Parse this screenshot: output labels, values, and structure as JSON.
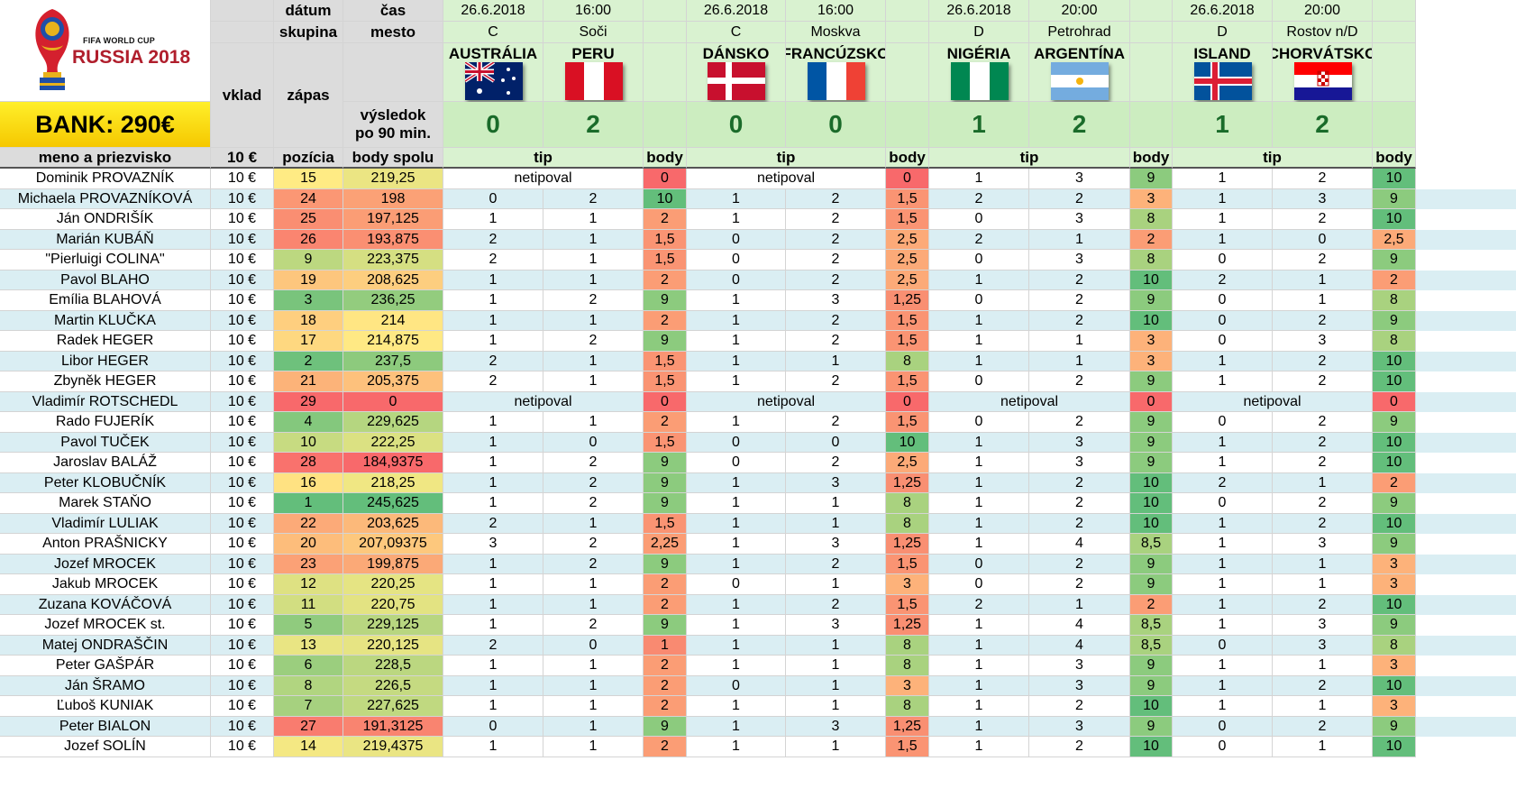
{
  "logo": {
    "line1": "FIFA WORLD CUP",
    "line2": "RUSSIA 2018"
  },
  "bank_label": "BANK: 290€",
  "header_labels": {
    "datum": "dátum",
    "skupina": "skupina",
    "cas": "čas",
    "mesto": "mesto",
    "vklad": "vklad",
    "zapas": "zápas",
    "vysledok": "výsledok",
    "po90": "po 90 min.",
    "meno": "meno a priezvisko",
    "vklad_amount": "10 €",
    "pozicia": "pozícia",
    "body_spolu": "body spolu",
    "tip": "tip",
    "body": "body"
  },
  "matches": [
    {
      "date": "26.6.2018",
      "time": "16:00",
      "group": "C",
      "city": "Soči",
      "home": "AUSTRÁLIA",
      "away": "PERU",
      "home_score": "0",
      "away_score": "2",
      "home_flag": "australia-flag",
      "away_flag": "peru-flag"
    },
    {
      "date": "26.6.2018",
      "time": "16:00",
      "group": "C",
      "city": "Moskva",
      "home": "DÁNSKO",
      "away": "FRANCÚZSKO",
      "home_score": "0",
      "away_score": "0",
      "home_flag": "denmark-flag",
      "away_flag": "france-flag"
    },
    {
      "date": "26.6.2018",
      "time": "20:00",
      "group": "D",
      "city": "Petrohrad",
      "home": "NIGÉRIA",
      "away": "ARGENTÍNA",
      "home_score": "1",
      "away_score": "2",
      "home_flag": "nigeria-flag",
      "away_flag": "argentina-flag"
    },
    {
      "date": "26.6.2018",
      "time": "20:00",
      "group": "D",
      "city": "Rostov n/D",
      "home": "ISLAND",
      "away": "CHORVÁTSKO",
      "home_score": "1",
      "away_score": "2",
      "home_flag": "iceland-flag",
      "away_flag": "croatia-flag"
    }
  ],
  "rows": [
    {
      "name": "Dominik PROVAZNÍK",
      "vklad": "10 €",
      "pos": "15",
      "total": "219,25",
      "m": [
        {
          "nt": "netipoval",
          "p": "0"
        },
        {
          "nt": "netipoval",
          "p": "0"
        },
        {
          "h": "1",
          "a": "3",
          "p": "9"
        },
        {
          "h": "1",
          "a": "2",
          "p": "10"
        }
      ]
    },
    {
      "name": "Michaela PROVAZNÍKOVÁ",
      "vklad": "10 €",
      "pos": "24",
      "total": "198",
      "m": [
        {
          "h": "0",
          "a": "2",
          "p": "10"
        },
        {
          "h": "1",
          "a": "2",
          "p": "1,5"
        },
        {
          "h": "2",
          "a": "2",
          "p": "3"
        },
        {
          "h": "1",
          "a": "3",
          "p": "9"
        }
      ]
    },
    {
      "name": "Ján ONDRIŠÍK",
      "vklad": "10 €",
      "pos": "25",
      "total": "197,125",
      "m": [
        {
          "h": "1",
          "a": "1",
          "p": "2"
        },
        {
          "h": "1",
          "a": "2",
          "p": "1,5"
        },
        {
          "h": "0",
          "a": "3",
          "p": "8"
        },
        {
          "h": "1",
          "a": "2",
          "p": "10"
        }
      ]
    },
    {
      "name": "Marián KUBÁŇ",
      "vklad": "10 €",
      "pos": "26",
      "total": "193,875",
      "m": [
        {
          "h": "2",
          "a": "1",
          "p": "1,5"
        },
        {
          "h": "0",
          "a": "2",
          "p": "2,5"
        },
        {
          "h": "2",
          "a": "1",
          "p": "2"
        },
        {
          "h": "1",
          "a": "0",
          "p": "2,5"
        }
      ]
    },
    {
      "name": "\"Pierluigi COLINA\"",
      "vklad": "10 €",
      "pos": "9",
      "total": "223,375",
      "m": [
        {
          "h": "2",
          "a": "1",
          "p": "1,5"
        },
        {
          "h": "0",
          "a": "2",
          "p": "2,5"
        },
        {
          "h": "0",
          "a": "3",
          "p": "8"
        },
        {
          "h": "0",
          "a": "2",
          "p": "9"
        }
      ]
    },
    {
      "name": "Pavol BLAHO",
      "vklad": "10 €",
      "pos": "19",
      "total": "208,625",
      "m": [
        {
          "h": "1",
          "a": "1",
          "p": "2"
        },
        {
          "h": "0",
          "a": "2",
          "p": "2,5"
        },
        {
          "h": "1",
          "a": "2",
          "p": "10"
        },
        {
          "h": "2",
          "a": "1",
          "p": "2"
        }
      ]
    },
    {
      "name": "Emília BLAHOVÁ",
      "vklad": "10 €",
      "pos": "3",
      "total": "236,25",
      "m": [
        {
          "h": "1",
          "a": "2",
          "p": "9"
        },
        {
          "h": "1",
          "a": "3",
          "p": "1,25"
        },
        {
          "h": "0",
          "a": "2",
          "p": "9"
        },
        {
          "h": "0",
          "a": "1",
          "p": "8"
        }
      ]
    },
    {
      "name": "Martin KLUČKA",
      "vklad": "10 €",
      "pos": "18",
      "total": "214",
      "m": [
        {
          "h": "1",
          "a": "1",
          "p": "2"
        },
        {
          "h": "1",
          "a": "2",
          "p": "1,5"
        },
        {
          "h": "1",
          "a": "2",
          "p": "10"
        },
        {
          "h": "0",
          "a": "2",
          "p": "9"
        }
      ]
    },
    {
      "name": "Radek HEGER",
      "vklad": "10 €",
      "pos": "17",
      "total": "214,875",
      "m": [
        {
          "h": "1",
          "a": "2",
          "p": "9"
        },
        {
          "h": "1",
          "a": "2",
          "p": "1,5"
        },
        {
          "h": "1",
          "a": "1",
          "p": "3"
        },
        {
          "h": "0",
          "a": "3",
          "p": "8"
        }
      ]
    },
    {
      "name": "Libor HEGER",
      "vklad": "10 €",
      "pos": "2",
      "total": "237,5",
      "m": [
        {
          "h": "2",
          "a": "1",
          "p": "1,5"
        },
        {
          "h": "1",
          "a": "1",
          "p": "8"
        },
        {
          "h": "1",
          "a": "1",
          "p": "3"
        },
        {
          "h": "1",
          "a": "2",
          "p": "10"
        }
      ]
    },
    {
      "name": "Zbyněk HEGER",
      "vklad": "10 €",
      "pos": "21",
      "total": "205,375",
      "m": [
        {
          "h": "2",
          "a": "1",
          "p": "1,5"
        },
        {
          "h": "1",
          "a": "2",
          "p": "1,5"
        },
        {
          "h": "0",
          "a": "2",
          "p": "9"
        },
        {
          "h": "1",
          "a": "2",
          "p": "10"
        }
      ]
    },
    {
      "name": "Vladimír ROTSCHEDL",
      "vklad": "10 €",
      "pos": "29",
      "total": "0",
      "m": [
        {
          "nt": "netipoval",
          "p": "0"
        },
        {
          "nt": "netipoval",
          "p": "0"
        },
        {
          "nt": "netipoval",
          "p": "0"
        },
        {
          "nt": "netipoval",
          "p": "0"
        }
      ]
    },
    {
      "name": "Rado FUJERÍK",
      "vklad": "10 €",
      "pos": "4",
      "total": "229,625",
      "m": [
        {
          "h": "1",
          "a": "1",
          "p": "2"
        },
        {
          "h": "1",
          "a": "2",
          "p": "1,5"
        },
        {
          "h": "0",
          "a": "2",
          "p": "9"
        },
        {
          "h": "0",
          "a": "2",
          "p": "9"
        }
      ]
    },
    {
      "name": "Pavol TUČEK",
      "vklad": "10 €",
      "pos": "10",
      "total": "222,25",
      "m": [
        {
          "h": "1",
          "a": "0",
          "p": "1,5"
        },
        {
          "h": "0",
          "a": "0",
          "p": "10"
        },
        {
          "h": "1",
          "a": "3",
          "p": "9"
        },
        {
          "h": "1",
          "a": "2",
          "p": "10"
        }
      ]
    },
    {
      "name": "Jaroslav BALÁŽ",
      "vklad": "10 €",
      "pos": "28",
      "total": "184,9375",
      "m": [
        {
          "h": "1",
          "a": "2",
          "p": "9"
        },
        {
          "h": "0",
          "a": "2",
          "p": "2,5"
        },
        {
          "h": "1",
          "a": "3",
          "p": "9"
        },
        {
          "h": "1",
          "a": "2",
          "p": "10"
        }
      ]
    },
    {
      "name": "Peter KLOBUČNÍK",
      "vklad": "10 €",
      "pos": "16",
      "total": "218,25",
      "m": [
        {
          "h": "1",
          "a": "2",
          "p": "9"
        },
        {
          "h": "1",
          "a": "3",
          "p": "1,25"
        },
        {
          "h": "1",
          "a": "2",
          "p": "10"
        },
        {
          "h": "2",
          "a": "1",
          "p": "2"
        }
      ]
    },
    {
      "name": "Marek STAŇO",
      "vklad": "10 €",
      "pos": "1",
      "total": "245,625",
      "m": [
        {
          "h": "1",
          "a": "2",
          "p": "9"
        },
        {
          "h": "1",
          "a": "1",
          "p": "8"
        },
        {
          "h": "1",
          "a": "2",
          "p": "10"
        },
        {
          "h": "0",
          "a": "2",
          "p": "9"
        }
      ]
    },
    {
      "name": "Vladimír LULIAK",
      "vklad": "10 €",
      "pos": "22",
      "total": "203,625",
      "m": [
        {
          "h": "2",
          "a": "1",
          "p": "1,5"
        },
        {
          "h": "1",
          "a": "1",
          "p": "8"
        },
        {
          "h": "1",
          "a": "2",
          "p": "10"
        },
        {
          "h": "1",
          "a": "2",
          "p": "10"
        }
      ]
    },
    {
      "name": "Anton PRAŠNICKY",
      "vklad": "10 €",
      "pos": "20",
      "total": "207,09375",
      "m": [
        {
          "h": "3",
          "a": "2",
          "p": "2,25"
        },
        {
          "h": "1",
          "a": "3",
          "p": "1,25"
        },
        {
          "h": "1",
          "a": "4",
          "p": "8,5"
        },
        {
          "h": "1",
          "a": "3",
          "p": "9"
        }
      ]
    },
    {
      "name": "Jozef MROCEK",
      "vklad": "10 €",
      "pos": "23",
      "total": "199,875",
      "m": [
        {
          "h": "1",
          "a": "2",
          "p": "9"
        },
        {
          "h": "1",
          "a": "2",
          "p": "1,5"
        },
        {
          "h": "0",
          "a": "2",
          "p": "9"
        },
        {
          "h": "1",
          "a": "1",
          "p": "3"
        }
      ]
    },
    {
      "name": "Jakub MROCEK",
      "vklad": "10 €",
      "pos": "12",
      "total": "220,25",
      "m": [
        {
          "h": "1",
          "a": "1",
          "p": "2"
        },
        {
          "h": "0",
          "a": "1",
          "p": "3"
        },
        {
          "h": "0",
          "a": "2",
          "p": "9"
        },
        {
          "h": "1",
          "a": "1",
          "p": "3"
        }
      ]
    },
    {
      "name": "Zuzana KOVÁČOVÁ",
      "vklad": "10 €",
      "pos": "11",
      "total": "220,75",
      "m": [
        {
          "h": "1",
          "a": "1",
          "p": "2"
        },
        {
          "h": "1",
          "a": "2",
          "p": "1,5"
        },
        {
          "h": "2",
          "a": "1",
          "p": "2"
        },
        {
          "h": "1",
          "a": "2",
          "p": "10"
        }
      ]
    },
    {
      "name": "Jozef MROCEK st.",
      "vklad": "10 €",
      "pos": "5",
      "total": "229,125",
      "m": [
        {
          "h": "1",
          "a": "2",
          "p": "9"
        },
        {
          "h": "1",
          "a": "3",
          "p": "1,25"
        },
        {
          "h": "1",
          "a": "4",
          "p": "8,5"
        },
        {
          "h": "1",
          "a": "3",
          "p": "9"
        }
      ]
    },
    {
      "name": "Matej ONDRAŠČIN",
      "vklad": "10 €",
      "pos": "13",
      "total": "220,125",
      "m": [
        {
          "h": "2",
          "a": "0",
          "p": "1"
        },
        {
          "h": "1",
          "a": "1",
          "p": "8"
        },
        {
          "h": "1",
          "a": "4",
          "p": "8,5"
        },
        {
          "h": "0",
          "a": "3",
          "p": "8"
        }
      ]
    },
    {
      "name": "Peter GAŠPÁR",
      "vklad": "10 €",
      "pos": "6",
      "total": "228,5",
      "m": [
        {
          "h": "1",
          "a": "1",
          "p": "2"
        },
        {
          "h": "1",
          "a": "1",
          "p": "8"
        },
        {
          "h": "1",
          "a": "3",
          "p": "9"
        },
        {
          "h": "1",
          "a": "1",
          "p": "3"
        }
      ]
    },
    {
      "name": "Ján ŠRAMO",
      "vklad": "10 €",
      "pos": "8",
      "total": "226,5",
      "m": [
        {
          "h": "1",
          "a": "1",
          "p": "2"
        },
        {
          "h": "0",
          "a": "1",
          "p": "3"
        },
        {
          "h": "1",
          "a": "3",
          "p": "9"
        },
        {
          "h": "1",
          "a": "2",
          "p": "10"
        }
      ]
    },
    {
      "name": "Ľuboš KUNIAK",
      "vklad": "10 €",
      "pos": "7",
      "total": "227,625",
      "m": [
        {
          "h": "1",
          "a": "1",
          "p": "2"
        },
        {
          "h": "1",
          "a": "1",
          "p": "8"
        },
        {
          "h": "1",
          "a": "2",
          "p": "10"
        },
        {
          "h": "1",
          "a": "1",
          "p": "3"
        }
      ]
    },
    {
      "name": "Peter BIALON",
      "vklad": "10 €",
      "pos": "27",
      "total": "191,3125",
      "m": [
        {
          "h": "0",
          "a": "1",
          "p": "9"
        },
        {
          "h": "1",
          "a": "3",
          "p": "1,25"
        },
        {
          "h": "1",
          "a": "3",
          "p": "9"
        },
        {
          "h": "0",
          "a": "2",
          "p": "9"
        }
      ]
    },
    {
      "name": "Jozef SOLÍN",
      "vklad": "10 €",
      "pos": "14",
      "total": "219,4375",
      "m": [
        {
          "h": "1",
          "a": "1",
          "p": "2"
        },
        {
          "h": "1",
          "a": "1",
          "p": "1,5"
        },
        {
          "h": "1",
          "a": "2",
          "p": "10"
        },
        {
          "h": "0",
          "a": "1",
          "p": "10"
        }
      ]
    }
  ]
}
